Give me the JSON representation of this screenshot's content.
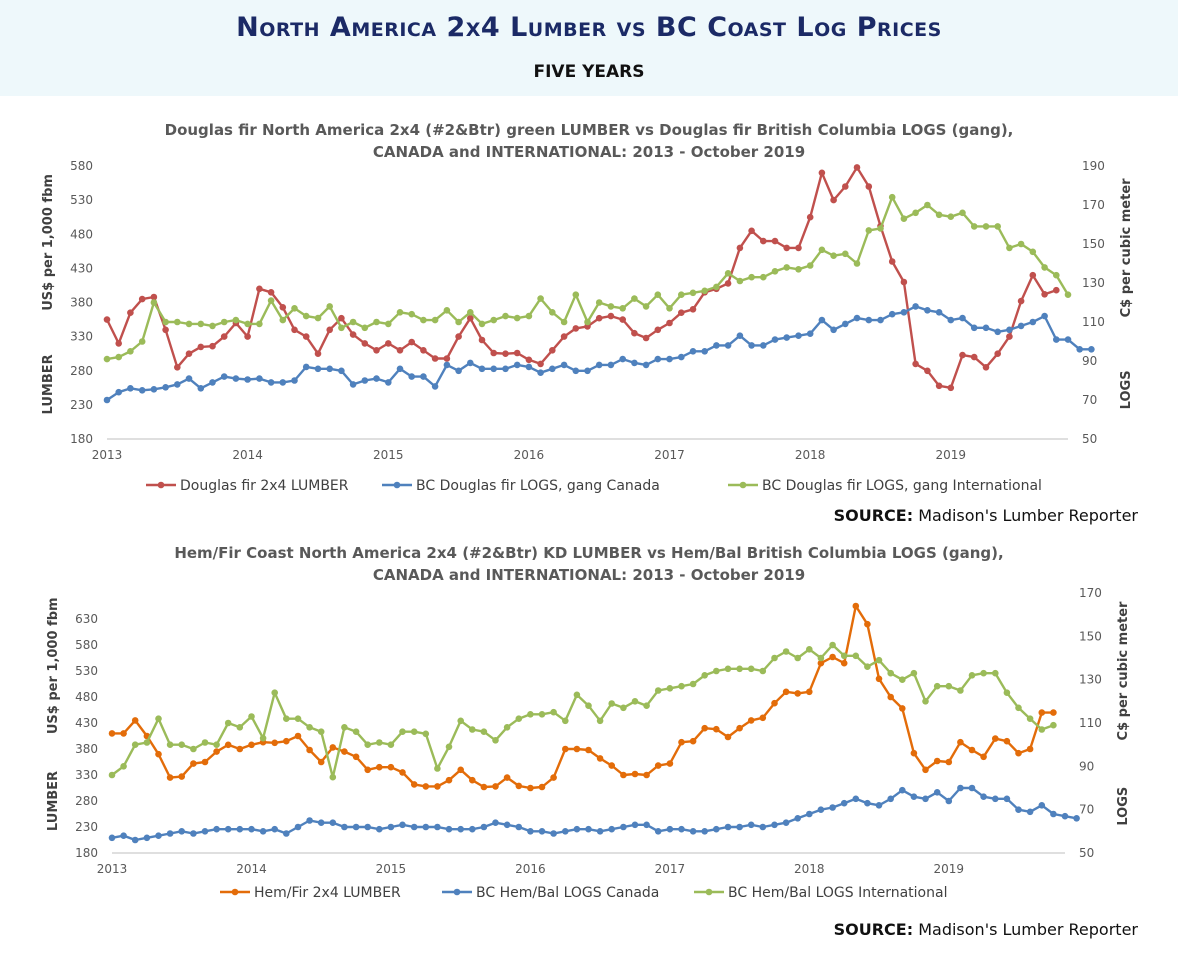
{
  "header": {
    "title": "North America 2x4 Lumber vs BC Coast Log Prices",
    "subtitle": "FIVE YEARS"
  },
  "colors": {
    "header_bg": "#eef8fb",
    "title": "#1b2a66",
    "red": "#c0504d",
    "blue": "#4f81bd",
    "green": "#9bbb59",
    "orange": "#e36c09"
  },
  "chart_data": [
    {
      "type": "line",
      "title": "Douglas fir North America 2x4 (#2&Btr) green LUMBER vs Douglas fir British Columbia LOGS (gang), CANADA and INTERNATIONAL: 2013 - October 2019",
      "title_lines": [
        "Douglas fir North America 2x4 (#2&Btr) green LUMBER vs Douglas fir British Columbia LOGS (gang),",
        "CANADA and INTERNATIONAL: 2013 - October 2019"
      ],
      "x_ticks": [
        "2013",
        "2014",
        "2015",
        "2016",
        "2017",
        "2018",
        "2019"
      ],
      "y_left": {
        "label_top": "US$ per 1,000 fbm",
        "label_bottom": "LUMBER",
        "ylim": [
          180,
          580
        ],
        "ticks": [
          180,
          230,
          280,
          330,
          380,
          430,
          480,
          530,
          580
        ]
      },
      "y_right": {
        "label_top": "C$ per cubic meter",
        "label_bottom": "LOGS",
        "ylim": [
          50,
          190
        ],
        "ticks": [
          50,
          70,
          90,
          110,
          130,
          150,
          170,
          190
        ]
      },
      "legend": "bottom",
      "series": [
        {
          "name": "Douglas fir 2x4 LUMBER",
          "axis": "left",
          "color": "#c0504d",
          "values": [
            355,
            320,
            365,
            385,
            388,
            340,
            285,
            305,
            315,
            316,
            330,
            350,
            330,
            400,
            395,
            373,
            340,
            330,
            305,
            340,
            357,
            333,
            320,
            310,
            320,
            310,
            322,
            310,
            298,
            298,
            330,
            357,
            325,
            306,
            305,
            306,
            296,
            290,
            310,
            330,
            342,
            345,
            357,
            360,
            355,
            335,
            328,
            340,
            350,
            365,
            370,
            395,
            400,
            408,
            460,
            485,
            470,
            470,
            460,
            460,
            505,
            570,
            530,
            550,
            578,
            550,
            492,
            440,
            410,
            290,
            280,
            258,
            255,
            303,
            300,
            285,
            305,
            330,
            382,
            420,
            392,
            398
          ]
        },
        {
          "name": "BC Douglas fir LOGS, gang Canada",
          "axis": "right",
          "color": "#4f81bd",
          "values": [
            70,
            74,
            76,
            75,
            75.5,
            76.5,
            78,
            81,
            76,
            79,
            82,
            81,
            80.5,
            81,
            79,
            79,
            80,
            87,
            86,
            86,
            85,
            78,
            80,
            81,
            79,
            86,
            82,
            82,
            77,
            88,
            85,
            89,
            86,
            86,
            86,
            88,
            87,
            84,
            86,
            88,
            85,
            85,
            88,
            88,
            91,
            89,
            88,
            91,
            91,
            92,
            95,
            95,
            98,
            98,
            103,
            98,
            98,
            101,
            102,
            103,
            104,
            111,
            106,
            109,
            112,
            111,
            111,
            114,
            115,
            118,
            116,
            115,
            111,
            112,
            107,
            107,
            105,
            106,
            108,
            110,
            113,
            101,
            101,
            96,
            96
          ]
        },
        {
          "name": "BC Douglas fir LOGS, gang International",
          "axis": "right",
          "color": "#9bbb59",
          "values": [
            91,
            92,
            95,
            100,
            120,
            110,
            110,
            109,
            109,
            108,
            110,
            111,
            109,
            109,
            121,
            111,
            117,
            113,
            112,
            118,
            107,
            110,
            107,
            110,
            109,
            115,
            114,
            111,
            111,
            116,
            110,
            115,
            109,
            111,
            113,
            112,
            113,
            122,
            115,
            110,
            124,
            110,
            120,
            118,
            117,
            122,
            118,
            124,
            117,
            124,
            125,
            126,
            128,
            135,
            131,
            133,
            133,
            136,
            138,
            137,
            139,
            147,
            144,
            145,
            140,
            157,
            158,
            174,
            163,
            166,
            170,
            165,
            164,
            166,
            159,
            159,
            159,
            148,
            150,
            146,
            138,
            134,
            124
          ]
        }
      ]
    },
    {
      "type": "line",
      "title": "Hem/Fir Coast North America 2x4 (#2&Btr) KD LUMBER vs Hem/Bal British Columbia LOGS (gang), CANADA and INTERNATIONAL: 2013 - October 2019",
      "title_lines": [
        "Hem/Fir Coast North America 2x4 (#2&Btr) KD LUMBER vs Hem/Bal British Columbia LOGS (gang),",
        "CANADA and INTERNATIONAL: 2013 - October 2019"
      ],
      "x_ticks": [
        "2013",
        "2014",
        "2015",
        "2016",
        "2017",
        "2018",
        "2019"
      ],
      "y_left": {
        "label_top": "US$ per 1,000 fbm",
        "label_bottom": "LUMBER",
        "ylim": [
          180,
          680
        ],
        "ticks": [
          180,
          230,
          280,
          330,
          380,
          430,
          480,
          530,
          580,
          630
        ]
      },
      "y_right": {
        "label_top": "C$ per cubic meter",
        "label_bottom": "LOGS",
        "ylim": [
          50,
          170
        ],
        "ticks": [
          50,
          70,
          90,
          110,
          130,
          150,
          170
        ]
      },
      "legend": "bottom",
      "series": [
        {
          "name": "Hem/Fir 2x4 LUMBER",
          "axis": "left",
          "color": "#e36c09",
          "values": [
            410,
            410,
            435,
            405,
            370,
            325,
            327,
            352,
            355,
            375,
            388,
            380,
            388,
            393,
            392,
            395,
            405,
            378,
            355,
            383,
            375,
            365,
            340,
            345,
            345,
            335,
            312,
            308,
            308,
            320,
            340,
            320,
            307,
            308,
            325,
            309,
            305,
            307,
            325,
            380,
            380,
            378,
            362,
            348,
            330,
            332,
            330,
            348,
            352,
            393,
            395,
            420,
            418,
            403,
            420,
            435,
            440,
            468,
            490,
            487,
            490,
            545,
            557,
            545,
            655,
            620,
            515,
            480,
            458,
            372,
            340,
            357,
            355,
            393,
            378,
            365,
            400,
            395,
            372,
            380,
            450,
            450
          ]
        },
        {
          "name": "BC Hem/Bal LOGS Canada",
          "axis": "right",
          "color": "#4f81bd",
          "values": [
            57,
            58,
            56,
            57,
            58,
            59,
            60,
            59,
            60,
            61,
            61,
            61,
            61,
            60,
            61,
            59,
            62,
            65,
            64,
            64,
            62,
            62,
            62,
            61,
            62,
            63,
            62,
            62,
            62,
            61,
            61,
            61,
            62,
            64,
            63,
            62,
            60,
            60,
            59,
            60,
            61,
            61,
            60,
            61,
            62,
            63,
            63,
            60,
            61,
            61,
            60,
            60,
            61,
            62,
            62,
            63,
            62,
            63,
            64,
            66,
            68,
            70,
            71,
            73,
            75,
            73,
            72,
            75,
            79,
            76,
            75,
            78,
            74,
            80,
            80,
            76,
            75,
            75,
            70,
            69,
            72,
            68,
            67,
            66
          ]
        },
        {
          "name": "BC Hem/Bal LOGS International",
          "axis": "right",
          "color": "#9bbb59",
          "values": [
            86,
            90,
            100,
            101,
            112,
            100,
            100,
            98,
            101,
            100,
            110,
            108,
            113,
            103,
            124,
            112,
            112,
            108,
            106,
            85,
            108,
            106,
            100,
            101,
            100,
            106,
            106,
            105,
            89,
            99,
            111,
            107,
            106,
            102,
            108,
            112,
            114,
            114,
            115,
            111,
            123,
            118,
            111,
            119,
            117,
            120,
            118,
            125,
            126,
            127,
            128,
            132,
            134,
            135,
            135,
            135,
            134,
            140,
            143,
            140,
            144,
            140,
            146,
            141,
            141,
            136,
            139,
            133,
            130,
            133,
            120,
            127,
            127,
            125,
            132,
            133,
            133,
            124,
            117,
            112,
            107,
            109
          ]
        }
      ]
    }
  ],
  "sources": {
    "top": {
      "prefix": "SOURCE:",
      "text": " Madison's Lumber Reporter"
    },
    "bottom": {
      "prefix": "SOURCE:",
      "text": " Madison's Lumber Reporter"
    }
  }
}
